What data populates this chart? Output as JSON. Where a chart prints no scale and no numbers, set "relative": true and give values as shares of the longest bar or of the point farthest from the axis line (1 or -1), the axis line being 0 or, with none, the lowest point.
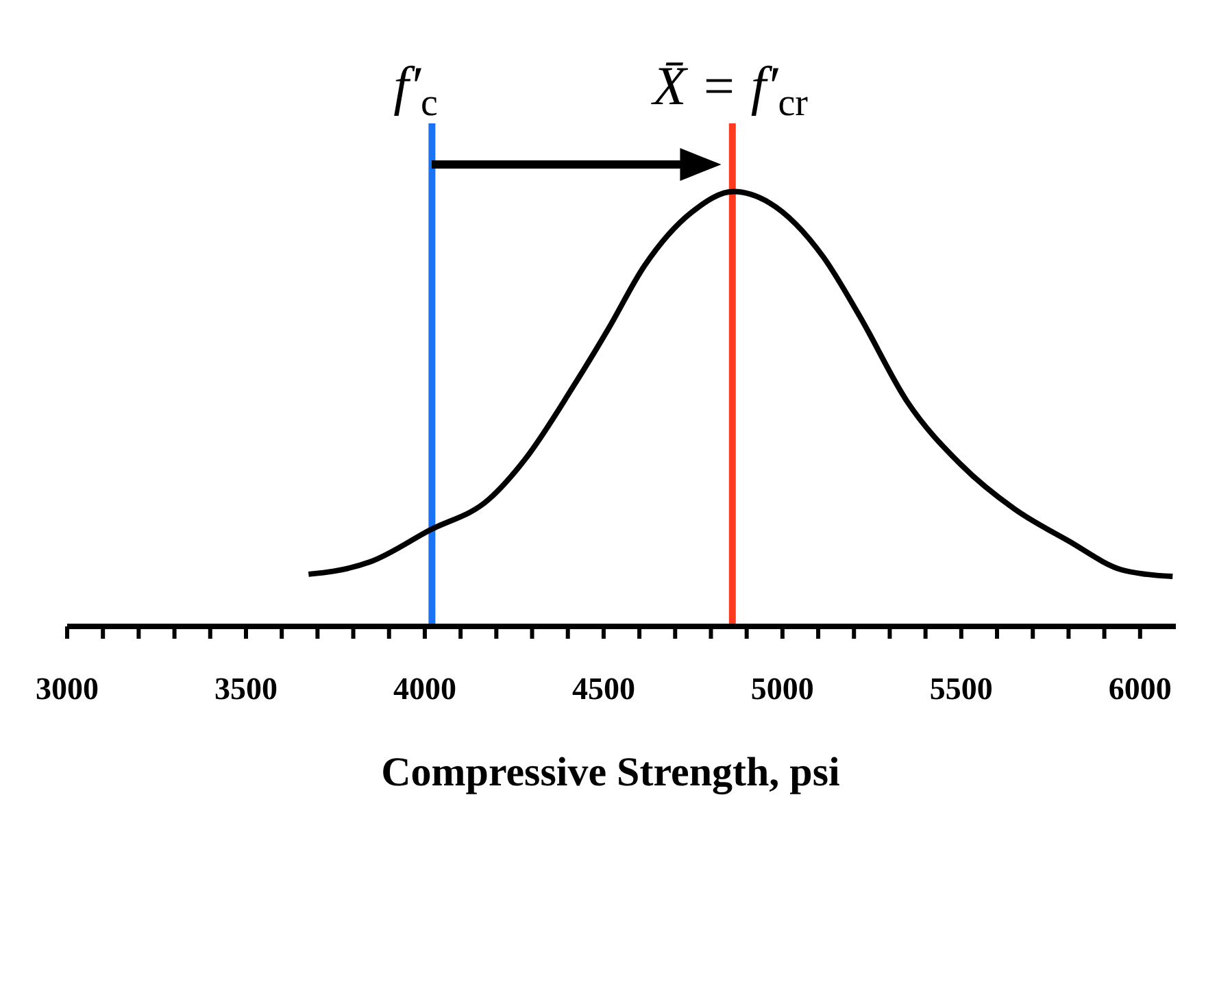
{
  "chart_data": {
    "type": "line",
    "relative": true,
    "xlabel": "Compressive Strength, psi",
    "x": [
      3675,
      3746,
      3846,
      4013,
      4180,
      4280,
      4413,
      4513,
      4614,
      4747,
      4864,
      4964,
      5114,
      5215,
      5348,
      5498,
      5649,
      5799,
      5949,
      6016,
      6091
    ],
    "series": [
      {
        "color": "#000000",
        "values": [
          0.12,
          0.127,
          0.148,
          0.221,
          0.293,
          0.384,
          0.549,
          0.684,
          0.829,
          0.953,
          1.0,
          0.974,
          0.85,
          0.715,
          0.518,
          0.373,
          0.27,
          0.197,
          0.13,
          0.12,
          0.115
        ]
      }
    ],
    "xlim": [
      3000,
      6100
    ],
    "xticks": [
      3000,
      {
        "value": 3100,
        "label": null
      },
      {
        "value": 3200,
        "label": null
      },
      {
        "value": 3300,
        "label": null
      },
      {
        "value": 3400,
        "label": null
      },
      3500,
      {
        "value": 3600,
        "label": null
      },
      {
        "value": 3700,
        "label": null
      },
      {
        "value": 3800,
        "label": null
      },
      {
        "value": 3900,
        "label": null
      },
      4000,
      {
        "value": 4100,
        "label": null
      },
      {
        "value": 4200,
        "label": null
      },
      {
        "value": 4300,
        "label": null
      },
      {
        "value": 4400,
        "label": null
      },
      4500,
      {
        "value": 4600,
        "label": null
      },
      {
        "value": 4700,
        "label": null
      },
      {
        "value": 4800,
        "label": null
      },
      {
        "value": 4900,
        "label": null
      },
      5000,
      {
        "value": 5100,
        "label": null
      },
      {
        "value": 5200,
        "label": null
      },
      {
        "value": 5300,
        "label": null
      },
      {
        "value": 5400,
        "label": null
      },
      5500,
      {
        "value": 5600,
        "label": null
      },
      {
        "value": 5700,
        "label": null
      },
      {
        "value": 5800,
        "label": null
      },
      {
        "value": 5900,
        "label": null
      },
      6000
    ],
    "ref_lines": [
      {
        "axis": "x",
        "value": 4020,
        "label": "f′$_{c}$",
        "color": "#1a73f5"
      },
      {
        "axis": "x",
        "value": 4860,
        "label": "X̄ = f′$_{cr}$",
        "color": "#ff3b1f"
      }
    ],
    "marker": "none",
    "line_style": "solid"
  }
}
